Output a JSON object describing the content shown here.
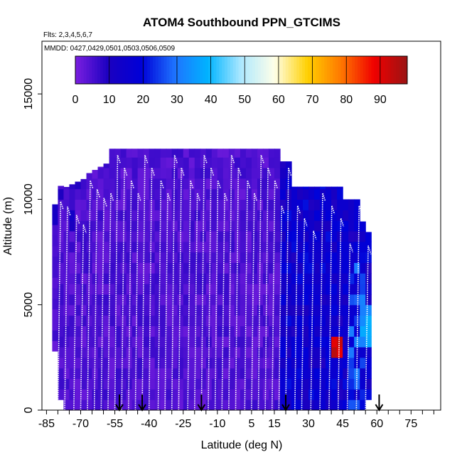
{
  "chart_data": {
    "type": "heatmap",
    "title": "ATOM4 Southbound PPN_GTCIMS",
    "subtitle_flights": "Flts: 2,3,4,5,6,7",
    "subtitle_dates": "MMDD: 0427,0429,0501,0503,0506,0509",
    "xlabel": "Latitude (deg N)",
    "ylabel": "Altitude (m)",
    "xlim": [
      -87,
      88
    ],
    "ylim": [
      0,
      17500
    ],
    "xticks": [
      -85,
      -70,
      -55,
      -40,
      -25,
      -10,
      5,
      15,
      30,
      45,
      60,
      75
    ],
    "yticks": [
      0,
      5000,
      10000,
      15000
    ],
    "colorbar": {
      "min": 0,
      "max": 98,
      "ticks": [
        0,
        10,
        20,
        30,
        40,
        50,
        60,
        70,
        80,
        90
      ],
      "colors": [
        "#7b1fe0",
        "#1a00c0",
        "#0000d8",
        "#1e74ff",
        "#00b4ff",
        "#aee8ff",
        "#ffffe8",
        "#ffd000",
        "#ff7800",
        "#f00000",
        "#9a1414"
      ]
    },
    "arrow_latitudes": [
      -53,
      -43,
      -17,
      20,
      61
    ],
    "profile_latitudes": [
      -80,
      -77,
      -73,
      -70,
      -67,
      -64,
      -61,
      -58,
      -55,
      -52,
      -49,
      -46,
      -43,
      -40,
      -36,
      -33,
      -30,
      -27,
      -23,
      -20,
      -17,
      -14,
      -11,
      -8,
      -5,
      -2,
      2,
      5,
      8,
      11,
      14,
      17,
      20,
      24,
      27,
      31,
      35,
      39,
      43,
      47,
      51,
      55
    ],
    "regions": [
      {
        "name": "southern hemisphere and tropics",
        "lat_range": [
          -82,
          17
        ],
        "alt_top": 12400,
        "value": 4
      },
      {
        "name": "northern mid-latitudes",
        "lat_range": [
          17,
          58
        ],
        "alt_top": 10600,
        "value": 15
      },
      {
        "name": "enhancement near 43N",
        "lat_range": [
          39,
          46
        ],
        "alt_range": [
          2500,
          3500
        ],
        "value": 85
      }
    ]
  }
}
